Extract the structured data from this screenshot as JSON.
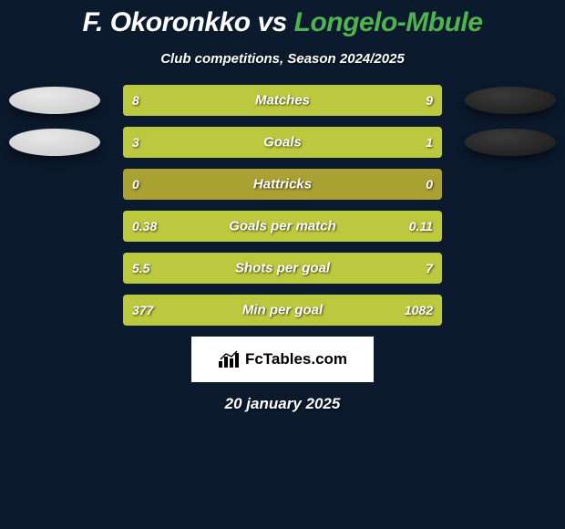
{
  "title": {
    "player1": "F. Okoronkko",
    "vs": "vs",
    "player2": "Longelo-Mbule",
    "player1_color": "#ffffff",
    "player2_color": "#4fb34f"
  },
  "subtitle": "Club competitions, Season 2024/2025",
  "crests": {
    "left_colors": [
      "#e8e8e8",
      "#c8c8c8"
    ],
    "right_colors": [
      "#3a3a3a",
      "#1a1a1a"
    ]
  },
  "chart": {
    "track_color": "#a9a132",
    "bar_color": "#bcc93f",
    "text_color": "#ffffff",
    "label_fontsize": 15,
    "value_fontsize": 14,
    "rows": [
      {
        "label": "Matches",
        "left_val": "8",
        "right_val": "9",
        "left_pct": 47,
        "right_pct": 53,
        "show_left_crest": true,
        "show_right_crest": true
      },
      {
        "label": "Goals",
        "left_val": "3",
        "right_val": "1",
        "left_pct": 75,
        "right_pct": 25,
        "show_left_crest": true,
        "show_right_crest": true
      },
      {
        "label": "Hattricks",
        "left_val": "0",
        "right_val": "0",
        "left_pct": 0,
        "right_pct": 0,
        "show_left_crest": false,
        "show_right_crest": false
      },
      {
        "label": "Goals per match",
        "left_val": "0.38",
        "right_val": "0.11",
        "left_pct": 78,
        "right_pct": 22,
        "show_left_crest": false,
        "show_right_crest": false
      },
      {
        "label": "Shots per goal",
        "left_val": "5.5",
        "right_val": "7",
        "left_pct": 44,
        "right_pct": 56,
        "show_left_crest": false,
        "show_right_crest": false
      },
      {
        "label": "Min per goal",
        "left_val": "377",
        "right_val": "1082",
        "left_pct": 26,
        "right_pct": 74,
        "show_left_crest": false,
        "show_right_crest": false
      }
    ]
  },
  "logo": {
    "text": "FcTables.com"
  },
  "date": "20 january 2025",
  "background_color": "#0c1a2e"
}
